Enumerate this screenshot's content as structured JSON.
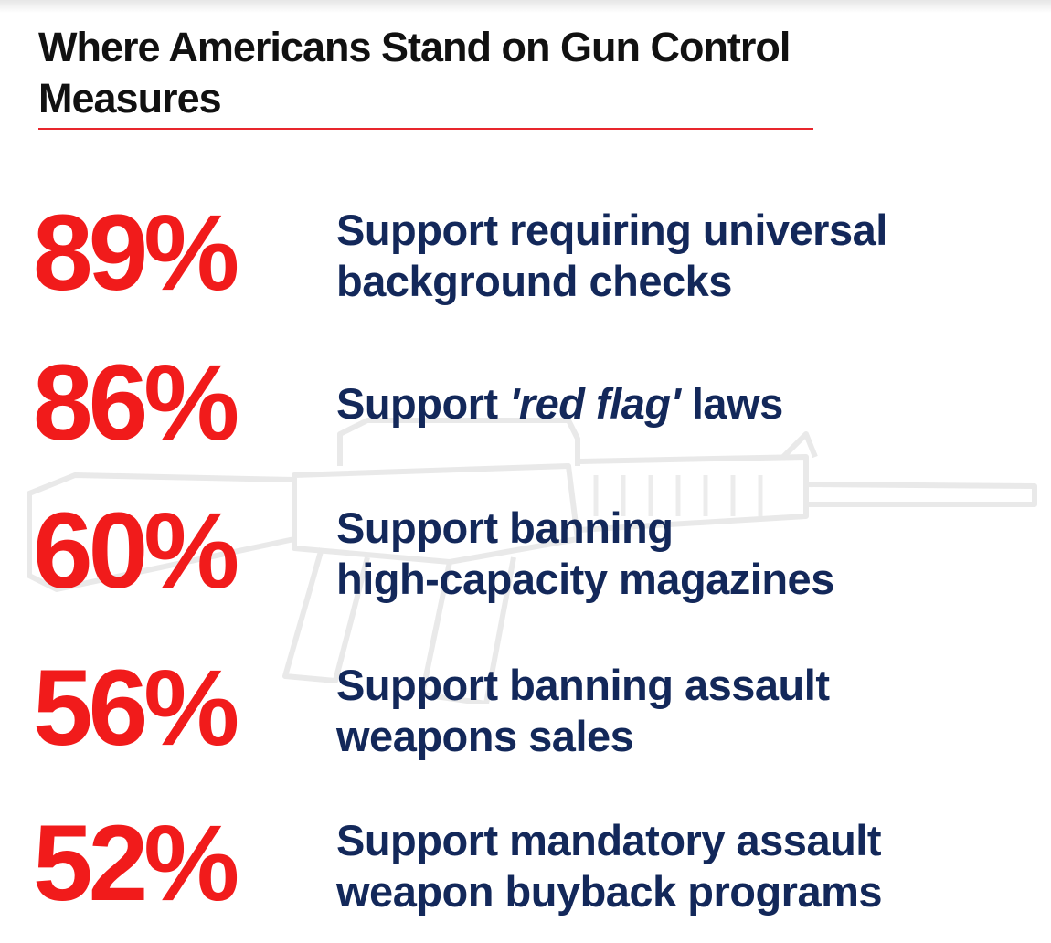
{
  "title": "Where Americans Stand on Gun Control Measures",
  "colors": {
    "accent_red": "#f11b1b",
    "text_navy": "#13285a",
    "rule_red": "#e8262d"
  },
  "background_icon": "rifle-icon",
  "stats": [
    {
      "percent": "89%",
      "line1": "Support requiring universal",
      "line2": "background checks"
    },
    {
      "percent": "86%",
      "prefix": "Support ",
      "emphasis": "'red flag'",
      "suffix": " laws"
    },
    {
      "percent": "60%",
      "line1": "Support banning",
      "line2": "high-capacity magazines"
    },
    {
      "percent": "56%",
      "line1": "Support banning assault",
      "line2": "weapons sales"
    },
    {
      "percent": "52%",
      "line1": "Support mandatory assault",
      "line2": "weapon buyback programs"
    }
  ]
}
